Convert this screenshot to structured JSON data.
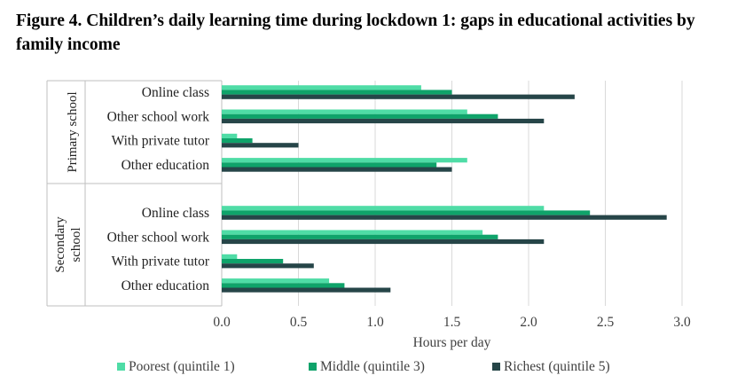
{
  "chart_data": {
    "type": "bar",
    "orientation": "horizontal",
    "title": "Figure 4. Children’s daily learning time during lockdown 1: gaps in educational activities by family income",
    "xlabel": "Hours per day",
    "xlim": [
      0,
      3
    ],
    "xticks": [
      "0.0",
      "0.5",
      "1.0",
      "1.5",
      "2.0",
      "2.5",
      "3.0"
    ],
    "grid": true,
    "legend_position": "bottom",
    "groups": [
      {
        "label_lines": [
          "Primary school"
        ],
        "categories": [
          "Online class",
          "Other school work",
          "With private tutor",
          "Other education"
        ]
      },
      {
        "label_lines": [
          "Secondary",
          "school"
        ],
        "categories": [
          "Online class",
          "Other school work",
          "With private tutor",
          "Other education"
        ]
      }
    ],
    "series": [
      {
        "name": "Poorest (quintile 1)",
        "color": "#4fdca6",
        "values": [
          [
            1.3,
            1.6,
            0.1,
            1.6
          ],
          [
            2.1,
            1.7,
            0.1,
            0.7
          ]
        ]
      },
      {
        "name": "Middle (quintile 3)",
        "color": "#0fa36a",
        "values": [
          [
            1.5,
            1.8,
            0.2,
            1.4
          ],
          [
            2.4,
            1.8,
            0.4,
            0.8
          ]
        ]
      },
      {
        "name": "Richest (quintile 5)",
        "color": "#264548",
        "values": [
          [
            2.3,
            2.1,
            0.5,
            1.5
          ],
          [
            2.9,
            2.1,
            0.6,
            1.1
          ]
        ]
      }
    ]
  }
}
